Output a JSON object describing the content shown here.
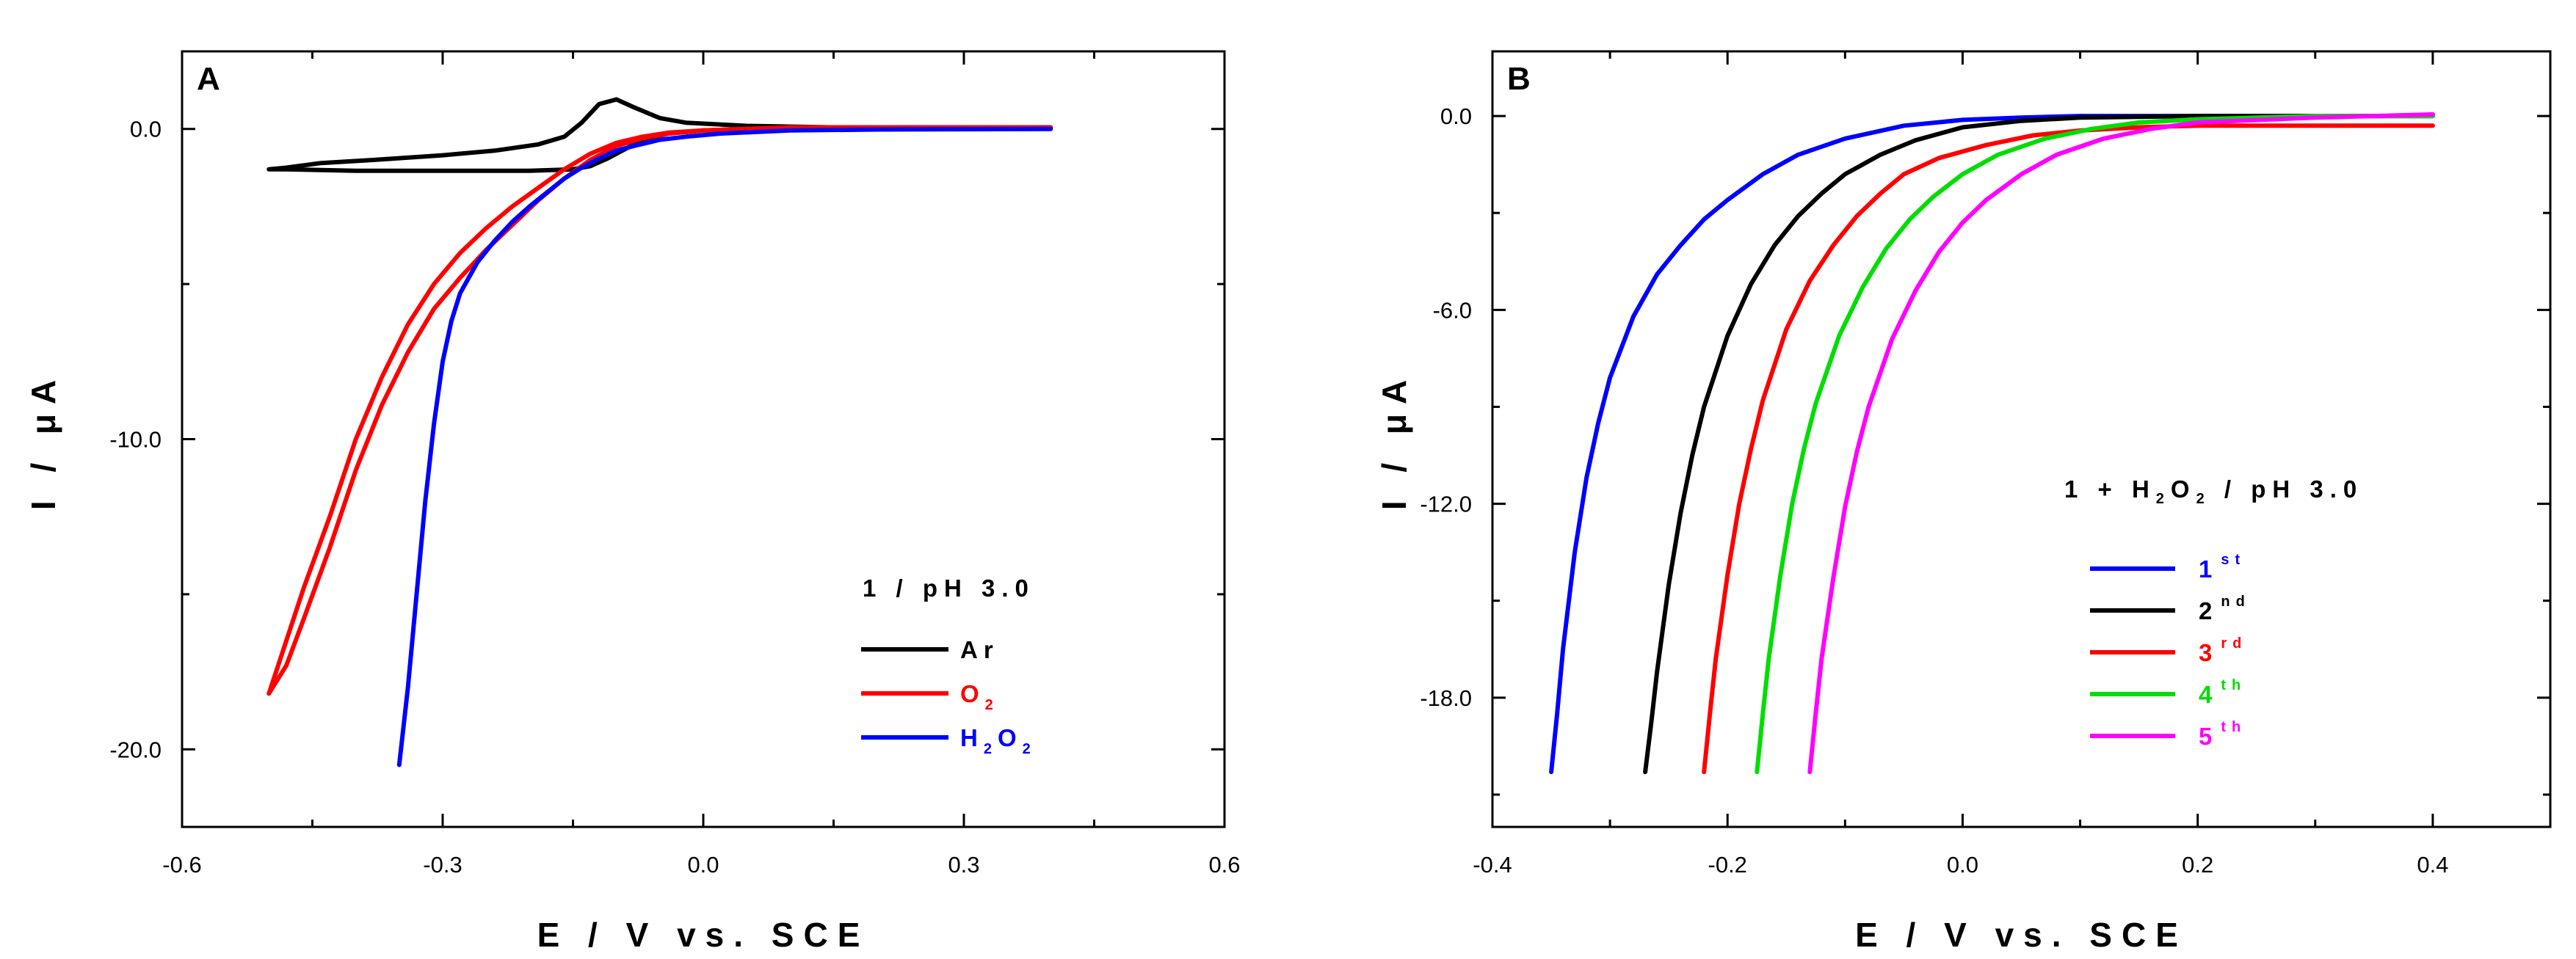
{
  "chart_data": [
    {
      "type": "line",
      "panel_label": "A",
      "xlabel": "E / V vs. SCE",
      "ylabel": "I / μA",
      "xlim": [
        -0.6,
        0.6
      ],
      "ylim": [
        -22.5,
        2.5
      ],
      "x_ticks": [
        -0.6,
        -0.3,
        0.0,
        0.3,
        0.6
      ],
      "x_tick_labels": [
        "-0.6",
        "-0.3",
        "0.0",
        "0.3",
        "0.6"
      ],
      "y_ticks": [
        0.0,
        -10.0,
        -20.0
      ],
      "y_tick_labels": [
        "0.0",
        "-10.0",
        "-20.0"
      ],
      "legend": {
        "title": "1 / pH 3.0",
        "position": "lower-right",
        "entries": [
          {
            "main": "Ar",
            "sub": "",
            "color": "#000000"
          },
          {
            "main": "O",
            "sub": "2",
            "color": "#ff0000"
          },
          {
            "main": "H",
            "sub": "2",
            "main2": "O",
            "sub2": "2",
            "color": "#0000ff"
          }
        ]
      },
      "series": [
        {
          "name": "Ar",
          "color": "#000000",
          "x": [
            -0.5,
            -0.48,
            -0.44,
            -0.38,
            -0.3,
            -0.24,
            -0.19,
            -0.16,
            -0.14,
            -0.12,
            -0.1,
            -0.08,
            -0.05,
            -0.02,
            0.05,
            0.15,
            0.3,
            0.4,
            0.4,
            0.3,
            0.15,
            0.05,
            0.0,
            -0.04,
            -0.07,
            -0.09,
            -0.11,
            -0.13,
            -0.15,
            -0.2,
            -0.3,
            -0.4,
            -0.48,
            -0.5
          ],
          "y": [
            -1.3,
            -1.25,
            -1.1,
            -1.0,
            -0.85,
            -0.7,
            -0.5,
            -0.25,
            0.2,
            0.8,
            0.95,
            0.7,
            0.35,
            0.2,
            0.1,
            0.05,
            0.05,
            0.05,
            0.05,
            0.05,
            0.05,
            0.0,
            -0.05,
            -0.15,
            -0.35,
            -0.65,
            -0.95,
            -1.2,
            -1.3,
            -1.35,
            -1.35,
            -1.35,
            -1.3,
            -1.3
          ]
        },
        {
          "name": "O2 (forward)",
          "color": "#ff0000",
          "x": [
            -0.5,
            -0.48,
            -0.46,
            -0.43,
            -0.4,
            -0.37,
            -0.34,
            -0.31,
            -0.28,
            -0.25,
            -0.22,
            -0.19,
            -0.16,
            -0.13,
            -0.1,
            -0.07,
            -0.04,
            0.0,
            0.05,
            0.1,
            0.2,
            0.3,
            0.4
          ],
          "y": [
            -18.2,
            -17.3,
            -15.8,
            -13.5,
            -11.0,
            -8.9,
            -7.2,
            -5.8,
            -4.8,
            -3.9,
            -3.1,
            -2.3,
            -1.6,
            -1.0,
            -0.55,
            -0.3,
            -0.15,
            -0.05,
            0.0,
            0.05,
            0.05,
            0.05,
            0.05
          ]
        },
        {
          "name": "O2 (reverse)",
          "color": "#ff0000",
          "x": [
            -0.5,
            -0.48,
            -0.46,
            -0.43,
            -0.4,
            -0.37,
            -0.34,
            -0.31,
            -0.28,
            -0.25,
            -0.22,
            -0.19,
            -0.16,
            -0.13,
            -0.1,
            -0.07,
            -0.04,
            0.0,
            0.05,
            0.1,
            0.2,
            0.3,
            0.4
          ],
          "y": [
            -18.2,
            -16.5,
            -14.8,
            -12.5,
            -10.0,
            -8.0,
            -6.3,
            -5.0,
            -4.0,
            -3.2,
            -2.5,
            -1.9,
            -1.3,
            -0.8,
            -0.45,
            -0.25,
            -0.12,
            -0.05,
            0.0,
            0.05,
            0.05,
            0.05,
            0.05
          ]
        },
        {
          "name": "H2O2",
          "color": "#0000ff",
          "x": [
            -0.35,
            -0.34,
            -0.33,
            -0.32,
            -0.31,
            -0.3,
            -0.29,
            -0.28,
            -0.26,
            -0.24,
            -0.22,
            -0.2,
            -0.18,
            -0.16,
            -0.14,
            -0.12,
            -0.1,
            -0.08,
            -0.05,
            -0.02,
            0.02,
            0.06,
            0.1,
            0.2,
            0.3,
            0.4
          ],
          "y": [
            -20.5,
            -18.0,
            -15.0,
            -12.0,
            -9.5,
            -7.5,
            -6.2,
            -5.3,
            -4.3,
            -3.6,
            -3.0,
            -2.5,
            -2.05,
            -1.6,
            -1.25,
            -0.95,
            -0.7,
            -0.55,
            -0.35,
            -0.25,
            -0.15,
            -0.1,
            -0.05,
            -0.02,
            -0.01,
            0.0
          ]
        }
      ]
    },
    {
      "type": "line",
      "panel_label": "B",
      "xlabel": "E / V vs. SCE",
      "ylabel": "I / μA",
      "xlim": [
        -0.4,
        0.5
      ],
      "ylim": [
        -22.0,
        2.0
      ],
      "x_ticks": [
        -0.4,
        -0.2,
        0.0,
        0.2,
        0.4
      ],
      "x_tick_labels": [
        "-0.4",
        "-0.2",
        "0.0",
        "0.2",
        "0.4"
      ],
      "y_ticks": [
        0.0,
        -6.0,
        -12.0,
        -18.0
      ],
      "y_tick_labels": [
        "0.0",
        "-6.0",
        "-12.0",
        "-18.0"
      ],
      "legend": {
        "title": "1 + H2O2 / pH 3.0",
        "title_parts": [
          "1 + H",
          "2",
          "O",
          "2",
          " / pH 3.0"
        ],
        "position": "lower-right",
        "entries": [
          {
            "main": "1",
            "sup": "st",
            "color": "#0000ff"
          },
          {
            "main": "2",
            "sup": "nd",
            "color": "#000000"
          },
          {
            "main": "3",
            "sup": "rd",
            "color": "#ff0000"
          },
          {
            "main": "4",
            "sup": "th",
            "color": "#00dd00"
          },
          {
            "main": "5",
            "sup": "th",
            "color": "#ff00ff"
          }
        ]
      },
      "series": [
        {
          "name": "1st",
          "color": "#0000ff",
          "x": [
            -0.35,
            -0.345,
            -0.34,
            -0.33,
            -0.32,
            -0.31,
            -0.3,
            -0.28,
            -0.26,
            -0.24,
            -0.22,
            -0.2,
            -0.17,
            -0.14,
            -0.1,
            -0.05,
            0.0,
            0.05,
            0.1,
            0.2,
            0.3,
            0.4
          ],
          "y": [
            -20.3,
            -18.5,
            -16.5,
            -13.5,
            -11.2,
            -9.5,
            -8.1,
            -6.2,
            -4.9,
            -4.0,
            -3.2,
            -2.6,
            -1.8,
            -1.2,
            -0.7,
            -0.3,
            -0.12,
            -0.05,
            0.0,
            0.0,
            0.0,
            0.0
          ]
        },
        {
          "name": "2nd",
          "color": "#000000",
          "x": [
            -0.27,
            -0.265,
            -0.26,
            -0.25,
            -0.24,
            -0.23,
            -0.22,
            -0.2,
            -0.18,
            -0.16,
            -0.14,
            -0.12,
            -0.1,
            -0.07,
            -0.04,
            0.0,
            0.05,
            0.1,
            0.2,
            0.3,
            0.4
          ],
          "y": [
            -20.3,
            -18.8,
            -17.2,
            -14.5,
            -12.3,
            -10.5,
            -9.0,
            -6.8,
            -5.2,
            -4.0,
            -3.1,
            -2.4,
            -1.8,
            -1.2,
            -0.75,
            -0.35,
            -0.15,
            -0.05,
            0.0,
            0.0,
            0.0
          ]
        },
        {
          "name": "3rd",
          "color": "#ff0000",
          "x": [
            -0.22,
            -0.215,
            -0.21,
            -0.2,
            -0.19,
            -0.18,
            -0.17,
            -0.15,
            -0.13,
            -0.11,
            -0.09,
            -0.07,
            -0.05,
            -0.02,
            0.02,
            0.06,
            0.1,
            0.15,
            0.2,
            0.3,
            0.4
          ],
          "y": [
            -20.3,
            -18.5,
            -16.8,
            -14.2,
            -12.0,
            -10.3,
            -8.8,
            -6.6,
            -5.1,
            -4.0,
            -3.1,
            -2.4,
            -1.8,
            -1.3,
            -0.9,
            -0.6,
            -0.45,
            -0.35,
            -0.3,
            -0.3,
            -0.3
          ]
        },
        {
          "name": "4th",
          "color": "#00dd00",
          "x": [
            -0.175,
            -0.17,
            -0.165,
            -0.155,
            -0.145,
            -0.135,
            -0.125,
            -0.105,
            -0.085,
            -0.065,
            -0.045,
            -0.025,
            0.0,
            0.03,
            0.07,
            0.11,
            0.15,
            0.2,
            0.3,
            0.4
          ],
          "y": [
            -20.3,
            -18.5,
            -16.8,
            -14.2,
            -12.0,
            -10.3,
            -8.9,
            -6.8,
            -5.3,
            -4.1,
            -3.2,
            -2.5,
            -1.8,
            -1.2,
            -0.7,
            -0.4,
            -0.2,
            -0.1,
            0.0,
            0.0
          ]
        },
        {
          "name": "5th",
          "color": "#ff00ff",
          "x": [
            -0.13,
            -0.125,
            -0.12,
            -0.11,
            -0.1,
            -0.09,
            -0.08,
            -0.06,
            -0.04,
            -0.02,
            0.0,
            0.02,
            0.05,
            0.08,
            0.12,
            0.16,
            0.2,
            0.3,
            0.4
          ],
          "y": [
            -20.3,
            -18.5,
            -16.8,
            -14.3,
            -12.1,
            -10.4,
            -9.0,
            -6.9,
            -5.4,
            -4.2,
            -3.3,
            -2.6,
            -1.8,
            -1.2,
            -0.7,
            -0.4,
            -0.2,
            -0.05,
            0.05
          ]
        }
      ]
    }
  ]
}
